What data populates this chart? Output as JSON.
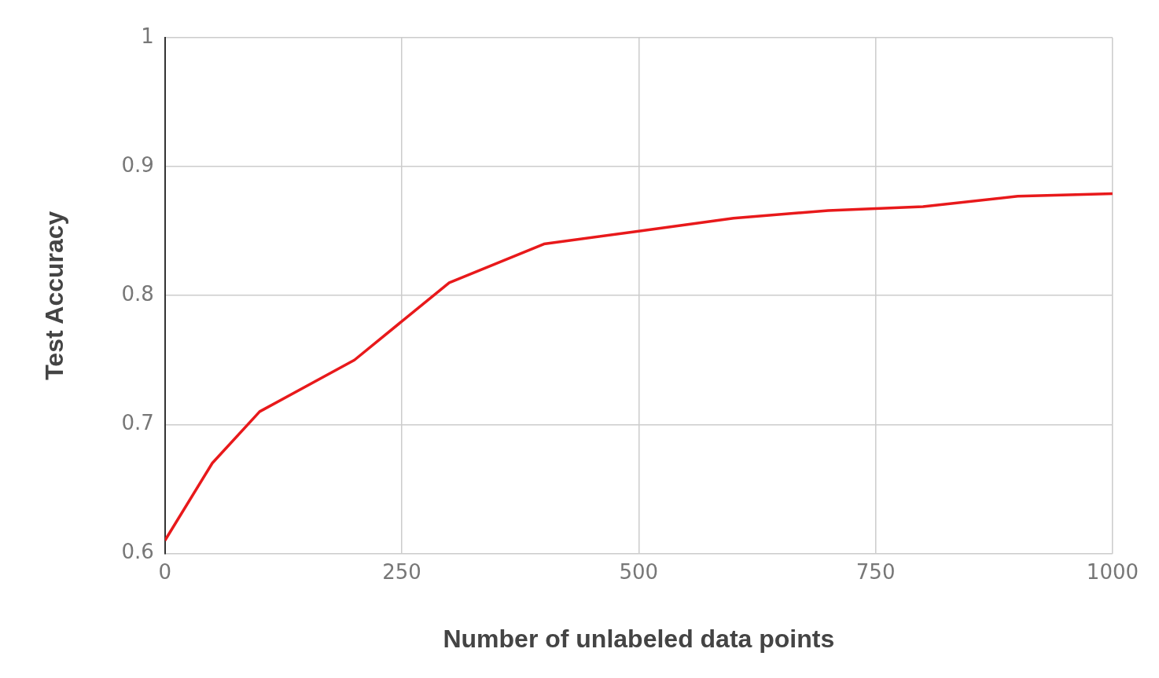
{
  "chart_data": {
    "type": "line",
    "xlabel": "Number of unlabeled data points",
    "ylabel": "Test Accuracy",
    "x": [
      0,
      50,
      100,
      200,
      300,
      400,
      500,
      600,
      700,
      800,
      900,
      1000
    ],
    "series": [
      {
        "color": "#e8191b",
        "values": [
          0.61,
          0.67,
          0.71,
          0.75,
          0.81,
          0.84,
          0.85,
          0.86,
          0.866,
          0.869,
          0.877,
          0.879
        ]
      }
    ],
    "xlim": [
      0,
      1000
    ],
    "xticks": [
      0,
      250,
      500,
      750,
      1000
    ],
    "ylim": [
      0.6,
      1
    ],
    "yticks": [
      0.6,
      0.7,
      0.8,
      0.9,
      1
    ],
    "grid": true,
    "legend": false,
    "marker": "none",
    "line_style": "solid"
  }
}
